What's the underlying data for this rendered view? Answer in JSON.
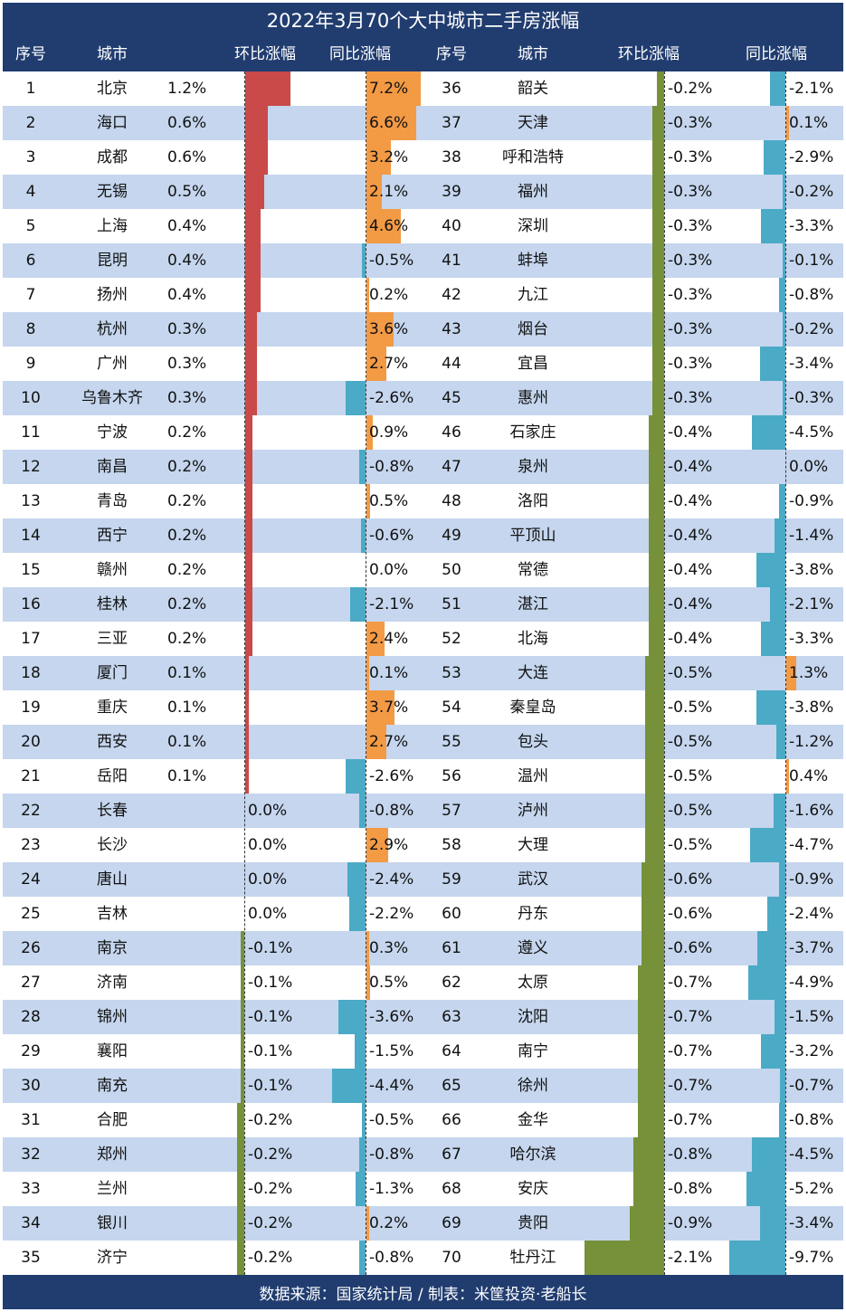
{
  "title": "2022年3月70个大中城市二手房涨幅",
  "headers": {
    "idx": "序号",
    "city": "城市",
    "mom": "环比涨幅",
    "yoy": "同比涨幅"
  },
  "footer": "数据来源：国家统计局 / 制表：米筐投资·老船长",
  "colors": {
    "header_bg": "#213d70",
    "row_alt": "#c5d6ee",
    "mom_pos": "#c94a48",
    "mom_neg": "#76913a",
    "yoy_pos": "#f39a45",
    "yoy_neg": "#4baac6"
  },
  "chart_data": {
    "type": "table",
    "columns": [
      "序号",
      "城市",
      "环比涨幅",
      "同比涨幅"
    ],
    "rows": [
      {
        "n": 1,
        "city": "北京",
        "mom": 1.2,
        "yoy": 7.2,
        "mom_label": "1.2%",
        "yoy_label": "7.2%"
      },
      {
        "n": 2,
        "city": "海口",
        "mom": 0.6,
        "yoy": 6.6,
        "mom_label": "0.6%",
        "yoy_label": "6.6%"
      },
      {
        "n": 3,
        "city": "成都",
        "mom": 0.6,
        "yoy": 3.2,
        "mom_label": "0.6%",
        "yoy_label": "3.2%"
      },
      {
        "n": 4,
        "city": "无锡",
        "mom": 0.5,
        "yoy": 2.1,
        "mom_label": "0.5%",
        "yoy_label": "2.1%"
      },
      {
        "n": 5,
        "city": "上海",
        "mom": 0.4,
        "yoy": 4.6,
        "mom_label": "0.4%",
        "yoy_label": "4.6%"
      },
      {
        "n": 6,
        "city": "昆明",
        "mom": 0.4,
        "yoy": -0.5,
        "mom_label": "0.4%",
        "yoy_label": "-0.5%"
      },
      {
        "n": 7,
        "city": "扬州",
        "mom": 0.4,
        "yoy": 0.2,
        "mom_label": "0.4%",
        "yoy_label": "0.2%"
      },
      {
        "n": 8,
        "city": "杭州",
        "mom": 0.3,
        "yoy": 3.6,
        "mom_label": "0.3%",
        "yoy_label": "3.6%"
      },
      {
        "n": 9,
        "city": "广州",
        "mom": 0.3,
        "yoy": 2.7,
        "mom_label": "0.3%",
        "yoy_label": "2.7%"
      },
      {
        "n": 10,
        "city": "乌鲁木齐",
        "mom": 0.3,
        "yoy": -2.6,
        "mom_label": "0.3%",
        "yoy_label": "-2.6%"
      },
      {
        "n": 11,
        "city": "宁波",
        "mom": 0.2,
        "yoy": 0.9,
        "mom_label": "0.2%",
        "yoy_label": "0.9%"
      },
      {
        "n": 12,
        "city": "南昌",
        "mom": 0.2,
        "yoy": -0.8,
        "mom_label": "0.2%",
        "yoy_label": "-0.8%"
      },
      {
        "n": 13,
        "city": "青岛",
        "mom": 0.2,
        "yoy": 0.5,
        "mom_label": "0.2%",
        "yoy_label": "0.5%"
      },
      {
        "n": 14,
        "city": "西宁",
        "mom": 0.2,
        "yoy": -0.6,
        "mom_label": "0.2%",
        "yoy_label": "-0.6%"
      },
      {
        "n": 15,
        "city": "赣州",
        "mom": 0.2,
        "yoy": 0.0,
        "mom_label": "0.2%",
        "yoy_label": "0.0%"
      },
      {
        "n": 16,
        "city": "桂林",
        "mom": 0.2,
        "yoy": -2.1,
        "mom_label": "0.2%",
        "yoy_label": "-2.1%"
      },
      {
        "n": 17,
        "city": "三亚",
        "mom": 0.2,
        "yoy": 2.4,
        "mom_label": "0.2%",
        "yoy_label": "2.4%"
      },
      {
        "n": 18,
        "city": "厦门",
        "mom": 0.1,
        "yoy": 0.1,
        "mom_label": "0.1%",
        "yoy_label": "0.1%"
      },
      {
        "n": 19,
        "city": "重庆",
        "mom": 0.1,
        "yoy": 3.7,
        "mom_label": "0.1%",
        "yoy_label": "3.7%"
      },
      {
        "n": 20,
        "city": "西安",
        "mom": 0.1,
        "yoy": 2.7,
        "mom_label": "0.1%",
        "yoy_label": "2.7%"
      },
      {
        "n": 21,
        "city": "岳阳",
        "mom": 0.1,
        "yoy": -2.6,
        "mom_label": "0.1%",
        "yoy_label": "-2.6%"
      },
      {
        "n": 22,
        "city": "长春",
        "mom": 0.0,
        "yoy": -0.8,
        "mom_label": "0.0%",
        "yoy_label": "-0.8%"
      },
      {
        "n": 23,
        "city": "长沙",
        "mom": 0.0,
        "yoy": 2.9,
        "mom_label": "0.0%",
        "yoy_label": "2.9%"
      },
      {
        "n": 24,
        "city": "唐山",
        "mom": 0.0,
        "yoy": -2.4,
        "mom_label": "0.0%",
        "yoy_label": "-2.4%"
      },
      {
        "n": 25,
        "city": "吉林",
        "mom": 0.0,
        "yoy": -2.2,
        "mom_label": "0.0%",
        "yoy_label": "-2.2%"
      },
      {
        "n": 26,
        "city": "南京",
        "mom": -0.1,
        "yoy": 0.3,
        "mom_label": "-0.1%",
        "yoy_label": "0.3%"
      },
      {
        "n": 27,
        "city": "济南",
        "mom": -0.1,
        "yoy": 0.5,
        "mom_label": "-0.1%",
        "yoy_label": "0.5%"
      },
      {
        "n": 28,
        "city": "锦州",
        "mom": -0.1,
        "yoy": -3.6,
        "mom_label": "-0.1%",
        "yoy_label": "-3.6%"
      },
      {
        "n": 29,
        "city": "襄阳",
        "mom": -0.1,
        "yoy": -1.5,
        "mom_label": "-0.1%",
        "yoy_label": "-1.5%"
      },
      {
        "n": 30,
        "city": "南充",
        "mom": -0.1,
        "yoy": -4.4,
        "mom_label": "-0.1%",
        "yoy_label": "-4.4%"
      },
      {
        "n": 31,
        "city": "合肥",
        "mom": -0.2,
        "yoy": -0.5,
        "mom_label": "-0.2%",
        "yoy_label": "-0.5%"
      },
      {
        "n": 32,
        "city": "郑州",
        "mom": -0.2,
        "yoy": -0.8,
        "mom_label": "-0.2%",
        "yoy_label": "-0.8%"
      },
      {
        "n": 33,
        "city": "兰州",
        "mom": -0.2,
        "yoy": -1.3,
        "mom_label": "-0.2%",
        "yoy_label": "-1.3%"
      },
      {
        "n": 34,
        "city": "银川",
        "mom": -0.2,
        "yoy": 0.2,
        "mom_label": "-0.2%",
        "yoy_label": "0.2%"
      },
      {
        "n": 35,
        "city": "济宁",
        "mom": -0.2,
        "yoy": -0.8,
        "mom_label": "-0.2%",
        "yoy_label": "-0.8%"
      },
      {
        "n": 36,
        "city": "韶关",
        "mom": -0.2,
        "yoy": -2.1,
        "mom_label": "-0.2%",
        "yoy_label": "-2.1%"
      },
      {
        "n": 37,
        "city": "天津",
        "mom": -0.3,
        "yoy": 0.1,
        "mom_label": "-0.3%",
        "yoy_label": "0.1%"
      },
      {
        "n": 38,
        "city": "呼和浩特",
        "mom": -0.3,
        "yoy": -2.9,
        "mom_label": "-0.3%",
        "yoy_label": "-2.9%"
      },
      {
        "n": 39,
        "city": "福州",
        "mom": -0.3,
        "yoy": -0.2,
        "mom_label": "-0.3%",
        "yoy_label": "-0.2%"
      },
      {
        "n": 40,
        "city": "深圳",
        "mom": -0.3,
        "yoy": -3.3,
        "mom_label": "-0.3%",
        "yoy_label": "-3.3%"
      },
      {
        "n": 41,
        "city": "蚌埠",
        "mom": -0.3,
        "yoy": -0.1,
        "mom_label": "-0.3%",
        "yoy_label": "-0.1%"
      },
      {
        "n": 42,
        "city": "九江",
        "mom": -0.3,
        "yoy": -0.8,
        "mom_label": "-0.3%",
        "yoy_label": "-0.8%"
      },
      {
        "n": 43,
        "city": "烟台",
        "mom": -0.3,
        "yoy": -0.2,
        "mom_label": "-0.3%",
        "yoy_label": "-0.2%"
      },
      {
        "n": 44,
        "city": "宜昌",
        "mom": -0.3,
        "yoy": -3.4,
        "mom_label": "-0.3%",
        "yoy_label": "-3.4%"
      },
      {
        "n": 45,
        "city": "惠州",
        "mom": -0.3,
        "yoy": -0.3,
        "mom_label": "-0.3%",
        "yoy_label": "-0.3%"
      },
      {
        "n": 46,
        "city": "石家庄",
        "mom": -0.4,
        "yoy": -4.5,
        "mom_label": "-0.4%",
        "yoy_label": "-4.5%"
      },
      {
        "n": 47,
        "city": "泉州",
        "mom": -0.4,
        "yoy": 0.0,
        "mom_label": "-0.4%",
        "yoy_label": "0.0%"
      },
      {
        "n": 48,
        "city": "洛阳",
        "mom": -0.4,
        "yoy": -0.9,
        "mom_label": "-0.4%",
        "yoy_label": "-0.9%"
      },
      {
        "n": 49,
        "city": "平顶山",
        "mom": -0.4,
        "yoy": -1.4,
        "mom_label": "-0.4%",
        "yoy_label": "-1.4%"
      },
      {
        "n": 50,
        "city": "常德",
        "mom": -0.4,
        "yoy": -3.8,
        "mom_label": "-0.4%",
        "yoy_label": "-3.8%"
      },
      {
        "n": 51,
        "city": "湛江",
        "mom": -0.4,
        "yoy": -2.1,
        "mom_label": "-0.4%",
        "yoy_label": "-2.1%"
      },
      {
        "n": 52,
        "city": "北海",
        "mom": -0.4,
        "yoy": -3.3,
        "mom_label": "-0.4%",
        "yoy_label": "-3.3%"
      },
      {
        "n": 53,
        "city": "大连",
        "mom": -0.5,
        "yoy": 1.3,
        "mom_label": "-0.5%",
        "yoy_label": "1.3%"
      },
      {
        "n": 54,
        "city": "秦皇岛",
        "mom": -0.5,
        "yoy": -3.8,
        "mom_label": "-0.5%",
        "yoy_label": "-3.8%"
      },
      {
        "n": 55,
        "city": "包头",
        "mom": -0.5,
        "yoy": -1.2,
        "mom_label": "-0.5%",
        "yoy_label": "-1.2%"
      },
      {
        "n": 56,
        "city": "温州",
        "mom": -0.5,
        "yoy": 0.4,
        "mom_label": "-0.5%",
        "yoy_label": "0.4%"
      },
      {
        "n": 57,
        "city": "泸州",
        "mom": -0.5,
        "yoy": -1.6,
        "mom_label": "-0.5%",
        "yoy_label": "-1.6%"
      },
      {
        "n": 58,
        "city": "大理",
        "mom": -0.5,
        "yoy": -4.7,
        "mom_label": "-0.5%",
        "yoy_label": "-4.7%"
      },
      {
        "n": 59,
        "city": "武汉",
        "mom": -0.6,
        "yoy": -0.9,
        "mom_label": "-0.6%",
        "yoy_label": "-0.9%"
      },
      {
        "n": 60,
        "city": "丹东",
        "mom": -0.6,
        "yoy": -2.4,
        "mom_label": "-0.6%",
        "yoy_label": "-2.4%"
      },
      {
        "n": 61,
        "city": "遵义",
        "mom": -0.6,
        "yoy": -3.7,
        "mom_label": "-0.6%",
        "yoy_label": "-3.7%"
      },
      {
        "n": 62,
        "city": "太原",
        "mom": -0.7,
        "yoy": -4.9,
        "mom_label": "-0.7%",
        "yoy_label": "-4.9%"
      },
      {
        "n": 63,
        "city": "沈阳",
        "mom": -0.7,
        "yoy": -1.5,
        "mom_label": "-0.7%",
        "yoy_label": "-1.5%"
      },
      {
        "n": 64,
        "city": "南宁",
        "mom": -0.7,
        "yoy": -3.2,
        "mom_label": "-0.7%",
        "yoy_label": "-3.2%"
      },
      {
        "n": 65,
        "city": "徐州",
        "mom": -0.7,
        "yoy": -0.7,
        "mom_label": "-0.7%",
        "yoy_label": "-0.7%"
      },
      {
        "n": 66,
        "city": "金华",
        "mom": -0.7,
        "yoy": -0.8,
        "mom_label": "-0.7%",
        "yoy_label": "-0.8%"
      },
      {
        "n": 67,
        "city": "哈尔滨",
        "mom": -0.8,
        "yoy": -4.5,
        "mom_label": "-0.8%",
        "yoy_label": "-4.5%"
      },
      {
        "n": 68,
        "city": "安庆",
        "mom": -0.8,
        "yoy": -5.2,
        "mom_label": "-0.8%",
        "yoy_label": "-5.2%"
      },
      {
        "n": 69,
        "city": "贵阳",
        "mom": -0.9,
        "yoy": -3.4,
        "mom_label": "-0.9%",
        "yoy_label": "-3.4%"
      },
      {
        "n": 70,
        "city": "牡丹江",
        "mom": -2.1,
        "yoy": -9.7,
        "mom_label": "-2.1%",
        "yoy_label": "-9.7%"
      }
    ]
  }
}
